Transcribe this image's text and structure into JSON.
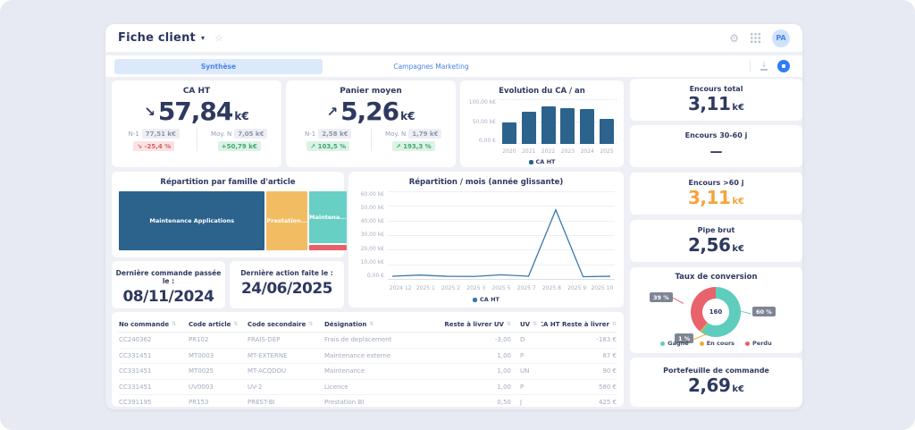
{
  "header": {
    "title": "Fiche client",
    "avatar": "PA"
  },
  "tabs": [
    {
      "label": "Synthèse",
      "active": true
    },
    {
      "label": "Campagnes Marketing",
      "active": false
    }
  ],
  "kpis": {
    "ca_ht": {
      "title": "CA HT",
      "arrow": "↘",
      "value": "57,84",
      "unit": "k€",
      "n1_label": "N-1",
      "n1_value": "77,51 k€",
      "moy_label": "Moy. N",
      "moy_value": "7,05 k€",
      "delta_pct": "↘ -25,4 %",
      "delta_abs": "+50,79 k€"
    },
    "panier_moyen": {
      "title": "Panier moyen",
      "arrow": "↗",
      "value": "5,26",
      "unit": "k€",
      "n1_label": "N-1",
      "n1_value": "2,58 k€",
      "moy_label": "Moy. N",
      "moy_value": "1,79 k€",
      "delta_pct": "↗ 103,5 %",
      "delta_abs": "↗ 193,3 %"
    },
    "encours_total": {
      "title": "Encours total",
      "value": "3,11",
      "unit": "k€"
    },
    "encours_30_60": {
      "title": "Encours 30-60 j",
      "value": "—"
    },
    "encours_plus_60": {
      "title": "Encours >60 j",
      "value": "3,11",
      "unit": "k€",
      "color": "#f5a43c"
    },
    "pipe_brut": {
      "title": "Pipe brut",
      "value": "2,56",
      "unit": "k€"
    },
    "portefeuille": {
      "title": "Portefeuille de commande",
      "value": "2,69",
      "unit": "k€"
    },
    "derniere_commande": {
      "title": "Dernière commande passée le :",
      "value": "08/11/2024"
    },
    "derniere_action": {
      "title": "Dernière action faite le :",
      "value": "24/06/2025"
    }
  },
  "chart_data": [
    {
      "id": "evolution_ca_an",
      "type": "bar",
      "title": "Evolution du CA / an",
      "categories": [
        "2020",
        "2021",
        "2022",
        "2023",
        "2024",
        "2025"
      ],
      "values": [
        48,
        72,
        84,
        80,
        77,
        57
      ],
      "ylim": [
        0,
        100
      ],
      "yticks": [
        "100,00 k€",
        "50,00 k€",
        "0,00 €"
      ],
      "legend": [
        "CA HT"
      ],
      "color": "#2b638c"
    },
    {
      "id": "repartition_famille",
      "type": "treemap",
      "title": "Répartition par famille d'article",
      "columns": [
        {
          "width_pct": 67
        },
        {
          "width_pct": 16.5
        },
        {
          "width_pct": 16.5
        }
      ],
      "blocks": [
        {
          "label": "Maintenance Applications",
          "color": "#2b638c",
          "col": 0,
          "flex": 100
        },
        {
          "label": "Prestation...",
          "color": "#f2bd62",
          "col": 1,
          "flex": 100
        },
        {
          "label": "Maintena...",
          "color": "#68cfc4",
          "col": 2,
          "flex": 90
        },
        {
          "label": "",
          "color": "#e9606b",
          "col": 2,
          "flex": 10
        }
      ]
    },
    {
      "id": "repartition_mois",
      "type": "line",
      "title": "Répartition / mois (année glissante)",
      "x": [
        "2024 12",
        "2025 1",
        "2025 2",
        "2025 3",
        "2025 5",
        "2025 7",
        "2025 8",
        "2025 9",
        "2025 10"
      ],
      "values": [
        0.7,
        1.5,
        0.6,
        0.5,
        1.7,
        0.7,
        48.5,
        0.4,
        0.6
      ],
      "ylim": [
        0,
        60
      ],
      "yticks": [
        "60,00 k€",
        "50,00 k€",
        "40,00 k€",
        "30,00 k€",
        "20,00 k€",
        "10,00 k€",
        "0,00 €"
      ],
      "legend": [
        "CA HT"
      ],
      "color": "#3c78a8"
    },
    {
      "id": "taux_conversion",
      "type": "pie",
      "title": "Taux de conversion",
      "center_value": "160",
      "segments": [
        {
          "label": "Gagné",
          "pct": 60,
          "pct_label": "60 %",
          "color": "#5fcdbe"
        },
        {
          "label": "En cours",
          "pct": 1,
          "pct_label": "1 %",
          "color": "#f2a93b"
        },
        {
          "label": "Perdu",
          "pct": 39,
          "pct_label": "39 %",
          "color": "#e8636b"
        }
      ]
    }
  ],
  "table": {
    "headers": [
      "No commande",
      "Code article",
      "Code secondaire",
      "Désignation",
      "Reste à livrer UV",
      "UV",
      "CA HT Reste à livrer"
    ],
    "rows": [
      [
        "CC240362",
        "PR102",
        "FRAIS-DEP",
        "Frais de deplacement",
        "-3,00",
        "D",
        "-183 €"
      ],
      [
        "CC331451",
        "MT0003",
        "MT-EXTERNE",
        "Maintenance externe",
        "1,00",
        "P",
        "87 €"
      ],
      [
        "CC331451",
        "MT0025",
        "MT-ACQDOU",
        "Maintenance",
        "1,00",
        "UN",
        "90 €"
      ],
      [
        "CC331451",
        "UV0003",
        "UV-2",
        "Licence",
        "1,00",
        "P",
        "580 €"
      ],
      [
        "CC391195",
        "PR153",
        "PREST-BI",
        "Prestation BI",
        "0,50",
        "J",
        "425 €"
      ]
    ]
  }
}
